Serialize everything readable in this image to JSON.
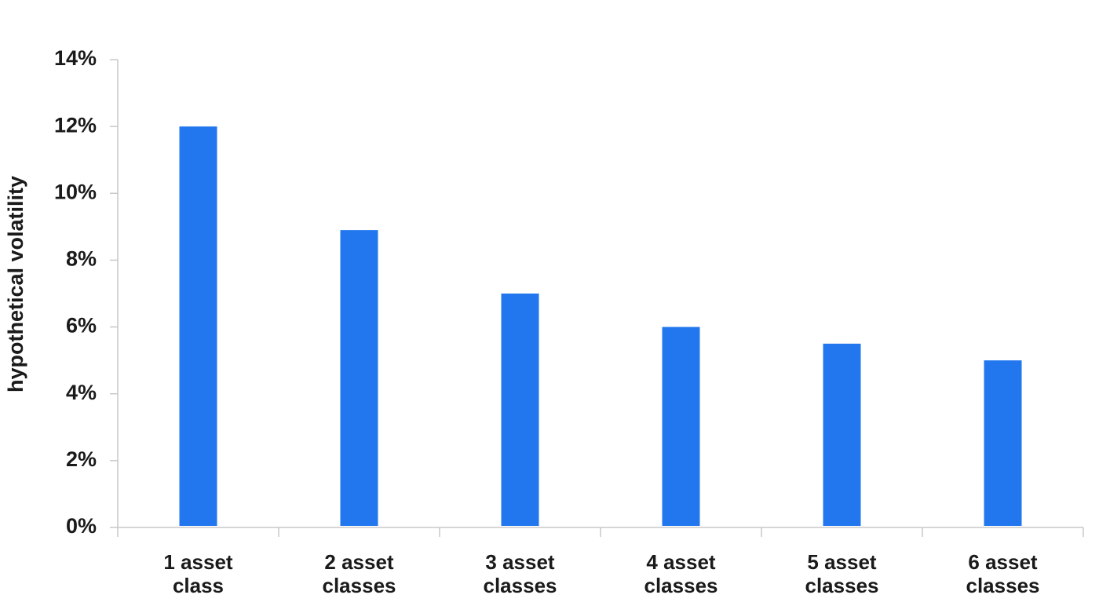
{
  "chart_data": {
    "type": "bar",
    "y_label": "hypothetical volatility",
    "categories": [
      "1 asset class",
      "2 asset classes",
      "3 asset classes",
      "4 asset classes",
      "5 asset classes",
      "6 asset classes"
    ],
    "values": [
      12,
      8.9,
      7,
      6,
      5.5,
      5
    ],
    "color": "#2277ee",
    "ylim": [
      0,
      14
    ],
    "yticks": [
      {
        "value": 0,
        "label": "0%"
      },
      {
        "value": 2,
        "label": "2%"
      },
      {
        "value": 4,
        "label": "4%"
      },
      {
        "value": 6,
        "label": "6%"
      },
      {
        "value": 8,
        "label": "8%"
      },
      {
        "value": 10,
        "label": "10%"
      },
      {
        "value": 12,
        "label": "12%"
      },
      {
        "value": 14,
        "label": "14%"
      }
    ],
    "grid": false
  }
}
